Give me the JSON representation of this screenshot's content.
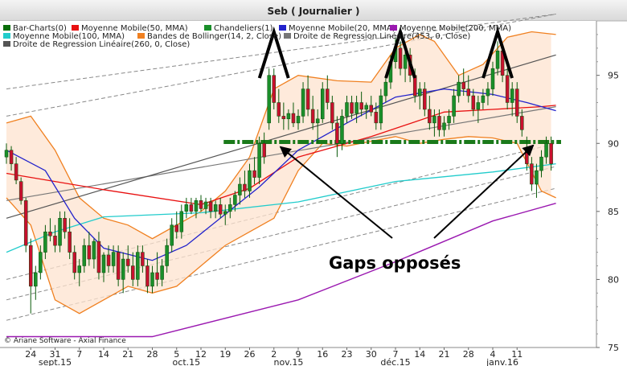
{
  "chart_data": {
    "type": "candlestick",
    "title": "Seb  ( Journalier )",
    "copyright": "© Ariane Software - Axial Finance",
    "ylim": [
      75,
      99
    ],
    "y_ticks": [
      75,
      80,
      85,
      90,
      95
    ],
    "legend_rows": [
      [
        {
          "label": "Bar-Charts(0)",
          "color": "#0a6e0a"
        },
        {
          "label": "Moyenne Mobile(50, MMA)",
          "color": "#e81010"
        },
        {
          "label": "Chandeliers(1)",
          "color": "#1a8f2a"
        },
        {
          "label": "Moyenne Mobile(20, MMA)",
          "color": "#2222cc"
        },
        {
          "label": "Moyenne Mobile(200, MMA)",
          "color": "#9a18b0"
        }
      ],
      [
        {
          "label": "Moyenne Mobile(100, MMA)",
          "color": "#22cccc"
        },
        {
          "label": "Bandes de Bollinger(14, 2, Close)",
          "color": "#f08020"
        },
        {
          "label": "Droite de Regression Linéaire(453, 0, Close)",
          "color": "#777777"
        }
      ],
      [
        {
          "label": "Droite de Regression Linéaire(260, 0, Close)",
          "color": "#555555"
        }
      ]
    ],
    "day_ticks": [
      "24",
      "31",
      "7",
      "14",
      "21",
      "28",
      "5",
      "12",
      "19",
      "26",
      "2",
      "9",
      "16",
      "23",
      "30",
      "7",
      "14",
      "21",
      "28",
      "4",
      "11"
    ],
    "month_labels": [
      "sept.15",
      "oct.15",
      "nov.15",
      "déc.15",
      "janv.16"
    ],
    "candles": [
      {
        "o": 89.0,
        "h": 90.0,
        "l": 88.5,
        "c": 89.5
      },
      {
        "o": 89.5,
        "h": 89.8,
        "l": 88.0,
        "c": 88.5
      },
      {
        "o": 88.5,
        "h": 89.0,
        "l": 87.0,
        "c": 87.3
      },
      {
        "o": 87.2,
        "h": 87.5,
        "l": 85.5,
        "c": 85.8
      },
      {
        "o": 85.8,
        "h": 86.0,
        "l": 82.0,
        "c": 82.5
      },
      {
        "o": 82.5,
        "h": 83.0,
        "l": 77.5,
        "c": 79.5
      },
      {
        "o": 79.5,
        "h": 81.0,
        "l": 78.5,
        "c": 80.5
      },
      {
        "o": 80.5,
        "h": 82.5,
        "l": 80.0,
        "c": 82.0
      },
      {
        "o": 82.0,
        "h": 84.0,
        "l": 81.5,
        "c": 83.5
      },
      {
        "o": 83.5,
        "h": 84.5,
        "l": 82.8,
        "c": 83.2
      },
      {
        "o": 83.2,
        "h": 84.0,
        "l": 82.0,
        "c": 82.5
      },
      {
        "o": 82.5,
        "h": 85.0,
        "l": 82.0,
        "c": 84.5
      },
      {
        "o": 84.5,
        "h": 85.0,
        "l": 83.0,
        "c": 83.5
      },
      {
        "o": 83.5,
        "h": 84.5,
        "l": 81.5,
        "c": 82.0
      },
      {
        "o": 82.0,
        "h": 82.5,
        "l": 80.0,
        "c": 80.5
      },
      {
        "o": 80.5,
        "h": 81.5,
        "l": 79.5,
        "c": 81.0
      },
      {
        "o": 81.0,
        "h": 83.0,
        "l": 80.5,
        "c": 82.5
      },
      {
        "o": 82.5,
        "h": 83.5,
        "l": 81.0,
        "c": 81.5
      },
      {
        "o": 81.5,
        "h": 83.0,
        "l": 80.8,
        "c": 82.8
      },
      {
        "o": 82.8,
        "h": 83.5,
        "l": 80.0,
        "c": 80.5
      },
      {
        "o": 80.5,
        "h": 82.0,
        "l": 79.8,
        "c": 81.8
      },
      {
        "o": 81.8,
        "h": 82.5,
        "l": 80.5,
        "c": 81.0
      },
      {
        "o": 81.0,
        "h": 82.5,
        "l": 80.5,
        "c": 82.0
      },
      {
        "o": 82.0,
        "h": 82.5,
        "l": 79.5,
        "c": 80.0
      },
      {
        "o": 80.0,
        "h": 82.0,
        "l": 79.0,
        "c": 81.5
      },
      {
        "o": 81.5,
        "h": 82.5,
        "l": 80.5,
        "c": 81.0
      },
      {
        "o": 81.0,
        "h": 82.0,
        "l": 79.5,
        "c": 80.0
      },
      {
        "o": 80.0,
        "h": 82.5,
        "l": 79.5,
        "c": 82.0
      },
      {
        "o": 82.0,
        "h": 82.5,
        "l": 80.5,
        "c": 81.0
      },
      {
        "o": 81.0,
        "h": 81.5,
        "l": 79.0,
        "c": 79.5
      },
      {
        "o": 79.5,
        "h": 81.0,
        "l": 79.0,
        "c": 80.5
      },
      {
        "o": 80.5,
        "h": 82.0,
        "l": 79.5,
        "c": 80.0
      },
      {
        "o": 80.0,
        "h": 81.5,
        "l": 79.5,
        "c": 81.0
      },
      {
        "o": 81.0,
        "h": 83.0,
        "l": 80.5,
        "c": 82.5
      },
      {
        "o": 82.5,
        "h": 84.5,
        "l": 82.0,
        "c": 84.0
      },
      {
        "o": 84.0,
        "h": 85.0,
        "l": 83.0,
        "c": 83.5
      },
      {
        "o": 83.5,
        "h": 85.5,
        "l": 83.0,
        "c": 85.0
      },
      {
        "o": 85.0,
        "h": 86.0,
        "l": 84.5,
        "c": 85.5
      },
      {
        "o": 85.5,
        "h": 86.0,
        "l": 84.8,
        "c": 85.0
      },
      {
        "o": 85.0,
        "h": 86.0,
        "l": 84.5,
        "c": 85.8
      },
      {
        "o": 85.8,
        "h": 86.2,
        "l": 85.0,
        "c": 85.2
      },
      {
        "o": 85.2,
        "h": 86.0,
        "l": 84.8,
        "c": 85.7
      },
      {
        "o": 85.7,
        "h": 86.0,
        "l": 84.5,
        "c": 85.0
      },
      {
        "o": 85.0,
        "h": 85.8,
        "l": 84.5,
        "c": 85.5
      },
      {
        "o": 85.5,
        "h": 86.0,
        "l": 84.5,
        "c": 84.8
      },
      {
        "o": 84.8,
        "h": 85.5,
        "l": 84.0,
        "c": 85.0
      },
      {
        "o": 85.0,
        "h": 86.0,
        "l": 84.5,
        "c": 85.5
      },
      {
        "o": 85.5,
        "h": 86.5,
        "l": 85.0,
        "c": 86.2
      },
      {
        "o": 86.2,
        "h": 87.5,
        "l": 85.5,
        "c": 87.0
      },
      {
        "o": 87.0,
        "h": 88.0,
        "l": 86.0,
        "c": 86.5
      },
      {
        "o": 86.5,
        "h": 88.5,
        "l": 86.0,
        "c": 88.0
      },
      {
        "o": 88.0,
        "h": 89.0,
        "l": 87.0,
        "c": 87.5
      },
      {
        "o": 87.5,
        "h": 90.5,
        "l": 87.0,
        "c": 90.0
      },
      {
        "o": 90.0,
        "h": 90.8,
        "l": 88.5,
        "c": 89.0
      },
      {
        "o": 91.5,
        "h": 95.5,
        "l": 91.0,
        "c": 95.0
      },
      {
        "o": 95.0,
        "h": 95.5,
        "l": 92.5,
        "c": 93.0
      },
      {
        "o": 93.0,
        "h": 94.0,
        "l": 91.5,
        "c": 92.0
      },
      {
        "o": 92.0,
        "h": 93.0,
        "l": 91.0,
        "c": 91.8
      },
      {
        "o": 91.8,
        "h": 92.5,
        "l": 91.0,
        "c": 92.2
      },
      {
        "o": 92.2,
        "h": 93.0,
        "l": 91.2,
        "c": 91.5
      },
      {
        "o": 91.5,
        "h": 92.5,
        "l": 91.0,
        "c": 92.0
      },
      {
        "o": 92.0,
        "h": 94.5,
        "l": 91.5,
        "c": 94.0
      },
      {
        "o": 94.0,
        "h": 95.0,
        "l": 92.0,
        "c": 92.5
      },
      {
        "o": 92.5,
        "h": 93.5,
        "l": 91.0,
        "c": 91.5
      },
      {
        "o": 91.5,
        "h": 92.5,
        "l": 90.0,
        "c": 91.8
      },
      {
        "o": 91.8,
        "h": 94.5,
        "l": 91.5,
        "c": 94.0
      },
      {
        "o": 94.0,
        "h": 95.0,
        "l": 92.5,
        "c": 93.0
      },
      {
        "o": 93.0,
        "h": 93.5,
        "l": 91.0,
        "c": 91.5
      },
      {
        "o": 91.5,
        "h": 92.0,
        "l": 89.0,
        "c": 90.0
      },
      {
        "o": 90.0,
        "h": 92.5,
        "l": 89.5,
        "c": 92.0
      },
      {
        "o": 92.0,
        "h": 93.5,
        "l": 91.5,
        "c": 93.0
      },
      {
        "o": 93.0,
        "h": 93.5,
        "l": 91.8,
        "c": 92.2
      },
      {
        "o": 92.2,
        "h": 93.5,
        "l": 91.5,
        "c": 93.0
      },
      {
        "o": 93.0,
        "h": 93.8,
        "l": 92.0,
        "c": 92.5
      },
      {
        "o": 92.5,
        "h": 93.0,
        "l": 91.8,
        "c": 92.8
      },
      {
        "o": 92.8,
        "h": 93.5,
        "l": 92.0,
        "c": 92.3
      },
      {
        "o": 92.3,
        "h": 93.0,
        "l": 91.0,
        "c": 91.5
      },
      {
        "o": 91.5,
        "h": 94.0,
        "l": 91.0,
        "c": 93.5
      },
      {
        "o": 93.5,
        "h": 95.0,
        "l": 93.0,
        "c": 94.5
      },
      {
        "o": 94.5,
        "h": 96.5,
        "l": 94.0,
        "c": 96.0
      },
      {
        "o": 96.0,
        "h": 97.8,
        "l": 95.5,
        "c": 97.0
      },
      {
        "o": 97.0,
        "h": 97.5,
        "l": 95.0,
        "c": 95.5
      },
      {
        "o": 95.5,
        "h": 97.0,
        "l": 94.5,
        "c": 96.5
      },
      {
        "o": 96.5,
        "h": 97.0,
        "l": 94.5,
        "c": 95.0
      },
      {
        "o": 95.0,
        "h": 95.5,
        "l": 93.0,
        "c": 93.5
      },
      {
        "o": 93.5,
        "h": 94.5,
        "l": 92.5,
        "c": 94.0
      },
      {
        "o": 94.0,
        "h": 94.5,
        "l": 92.0,
        "c": 92.5
      },
      {
        "o": 92.5,
        "h": 93.5,
        "l": 91.0,
        "c": 91.5
      },
      {
        "o": 91.5,
        "h": 92.5,
        "l": 90.5,
        "c": 92.0
      },
      {
        "o": 92.0,
        "h": 92.5,
        "l": 90.5,
        "c": 91.0
      },
      {
        "o": 91.0,
        "h": 92.0,
        "l": 90.5,
        "c": 91.5
      },
      {
        "o": 91.5,
        "h": 92.5,
        "l": 91.0,
        "c": 92.0
      },
      {
        "o": 92.0,
        "h": 94.0,
        "l": 91.5,
        "c": 93.5
      },
      {
        "o": 93.5,
        "h": 95.0,
        "l": 93.0,
        "c": 94.5
      },
      {
        "o": 94.5,
        "h": 95.5,
        "l": 93.5,
        "c": 94.0
      },
      {
        "o": 94.0,
        "h": 95.0,
        "l": 93.0,
        "c": 93.5
      },
      {
        "o": 93.5,
        "h": 94.0,
        "l": 92.0,
        "c": 92.5
      },
      {
        "o": 92.5,
        "h": 93.5,
        "l": 91.5,
        "c": 93.0
      },
      {
        "o": 93.0,
        "h": 94.0,
        "l": 92.5,
        "c": 93.5
      },
      {
        "o": 93.5,
        "h": 94.5,
        "l": 92.8,
        "c": 94.0
      },
      {
        "o": 94.0,
        "h": 96.0,
        "l": 93.5,
        "c": 95.5
      },
      {
        "o": 95.5,
        "h": 97.5,
        "l": 95.0,
        "c": 96.8
      },
      {
        "o": 96.8,
        "h": 97.0,
        "l": 94.5,
        "c": 95.0
      },
      {
        "o": 95.0,
        "h": 95.5,
        "l": 92.5,
        "c": 93.0
      },
      {
        "o": 93.0,
        "h": 94.5,
        "l": 92.0,
        "c": 94.0
      },
      {
        "o": 94.0,
        "h": 94.5,
        "l": 91.5,
        "c": 92.0
      },
      {
        "o": 92.0,
        "h": 92.5,
        "l": 90.5,
        "c": 91.0
      },
      {
        "o": 89.5,
        "h": 90.5,
        "l": 88.0,
        "c": 88.5
      },
      {
        "o": 88.5,
        "h": 89.0,
        "l": 86.5,
        "c": 87.0
      },
      {
        "o": 87.0,
        "h": 88.5,
        "l": 86.0,
        "c": 88.0
      },
      {
        "o": 88.0,
        "h": 89.5,
        "l": 87.5,
        "c": 89.0
      },
      {
        "o": 89.0,
        "h": 90.5,
        "l": 88.5,
        "c": 90.0
      },
      {
        "o": 90.0,
        "h": 90.5,
        "l": 88.0,
        "c": 88.5
      }
    ],
    "overlays": {
      "ma50": {
        "color": "#e81010",
        "points": [
          [
            0,
            87.8
          ],
          [
            20,
            86.6
          ],
          [
            40,
            85.5
          ],
          [
            50,
            86.7
          ],
          [
            60,
            89.0
          ],
          [
            75,
            90.5
          ],
          [
            90,
            92.3
          ],
          [
            100,
            92.5
          ],
          [
            110,
            92.7
          ],
          [
            113,
            92.8
          ]
        ]
      },
      "ma20": {
        "color": "#2222cc",
        "points": [
          [
            0,
            89.5
          ],
          [
            8,
            88.0
          ],
          [
            14,
            84.5
          ],
          [
            20,
            82.3
          ],
          [
            30,
            81.4
          ],
          [
            37,
            82.5
          ],
          [
            45,
            84.8
          ],
          [
            52,
            86.8
          ],
          [
            60,
            89.5
          ],
          [
            70,
            91.5
          ],
          [
            80,
            93.4
          ],
          [
            90,
            94.0
          ],
          [
            100,
            93.6
          ],
          [
            107,
            93.0
          ],
          [
            113,
            92.4
          ]
        ]
      },
      "ma100": {
        "color": "#22cccc",
        "points": [
          [
            0,
            82.0
          ],
          [
            10,
            83.5
          ],
          [
            20,
            84.6
          ],
          [
            40,
            84.9
          ],
          [
            60,
            85.7
          ],
          [
            80,
            87.2
          ],
          [
            100,
            87.9
          ],
          [
            113,
            88.5
          ]
        ]
      },
      "ma200": {
        "color": "#9a18b0",
        "points": [
          [
            0,
            75.8
          ],
          [
            30,
            75.8
          ],
          [
            60,
            78.5
          ],
          [
            80,
            81.3
          ],
          [
            100,
            84.3
          ],
          [
            113,
            85.6
          ]
        ]
      },
      "boll_upper": {
        "color": "#f08020",
        "points": [
          [
            0,
            91.5
          ],
          [
            5,
            92.0
          ],
          [
            10,
            89.5
          ],
          [
            15,
            86.0
          ],
          [
            20,
            84.5
          ],
          [
            25,
            84.0
          ],
          [
            30,
            83.0
          ],
          [
            40,
            85.0
          ],
          [
            45,
            86.5
          ],
          [
            50,
            89.0
          ],
          [
            55,
            94.0
          ],
          [
            60,
            95.0
          ],
          [
            68,
            94.6
          ],
          [
            75,
            94.5
          ],
          [
            80,
            97.0
          ],
          [
            85,
            98.0
          ],
          [
            88,
            97.5
          ],
          [
            93,
            95.0
          ],
          [
            98,
            95.8
          ],
          [
            103,
            97.8
          ],
          [
            108,
            98.2
          ],
          [
            113,
            98.0
          ]
        ]
      },
      "boll_lower": {
        "color": "#f08020",
        "points": [
          [
            0,
            86.0
          ],
          [
            5,
            84.0
          ],
          [
            10,
            78.5
          ],
          [
            15,
            77.5
          ],
          [
            20,
            78.5
          ],
          [
            25,
            79.5
          ],
          [
            30,
            79.0
          ],
          [
            35,
            79.5
          ],
          [
            40,
            81.0
          ],
          [
            45,
            82.5
          ],
          [
            50,
            83.5
          ],
          [
            55,
            84.5
          ],
          [
            60,
            88.0
          ],
          [
            65,
            90.0
          ],
          [
            70,
            89.8
          ],
          [
            80,
            90.5
          ],
          [
            85,
            90.0
          ],
          [
            90,
            90.3
          ],
          [
            95,
            90.5
          ],
          [
            100,
            90.4
          ],
          [
            105,
            90.0
          ],
          [
            110,
            86.5
          ],
          [
            113,
            86.0
          ]
        ]
      },
      "reg453": {
        "color": "#777777",
        "points": [
          [
            0,
            85.8
          ],
          [
            113,
            92.7
          ]
        ]
      },
      "reg260": {
        "color": "#555555",
        "points": [
          [
            0,
            84.5
          ],
          [
            113,
            96.5
          ]
        ]
      },
      "channel_lines": [
        [
          [
            0,
            94.0
          ],
          [
            113,
            99.5
          ]
        ],
        [
          [
            0,
            92.0
          ],
          [
            113,
            99.5
          ]
        ],
        [
          [
            0,
            80.0
          ],
          [
            113,
            90.0
          ]
        ],
        [
          [
            0,
            78.5
          ],
          [
            113,
            88.3
          ]
        ],
        [
          [
            0,
            77.0
          ],
          [
            113,
            86.7
          ]
        ]
      ],
      "gap_level": 90.1,
      "gap_start_index": 45
    },
    "annotations": {
      "text": "Gaps opposés",
      "peaks": [
        55,
        81,
        101
      ],
      "arrow_targets": [
        56,
        109
      ]
    }
  }
}
